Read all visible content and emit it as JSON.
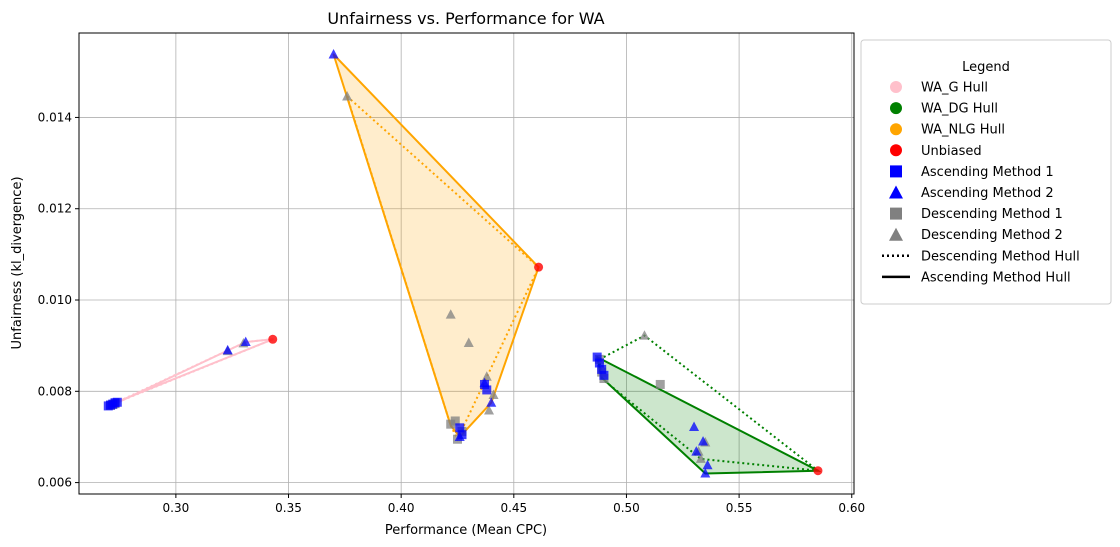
{
  "chart_data": {
    "type": "scatter",
    "title": "Unfairness vs. Performance for WA",
    "xlabel": "Performance (Mean CPC)",
    "ylabel": "Unfairness (kl_divergence)",
    "xlim": [
      0.257,
      0.601
    ],
    "ylim": [
      0.00575,
      0.01585
    ],
    "xticks": [
      "0.30",
      "0.35",
      "0.40",
      "0.45",
      "0.50",
      "0.55",
      "0.60"
    ],
    "yticks": [
      "0.006",
      "0.008",
      "0.010",
      "0.012",
      "0.014"
    ],
    "grid": true,
    "legend": {
      "title": "Legend",
      "placement": "outside-right",
      "entries": [
        {
          "label": "WA_G Hull",
          "marker": "circle",
          "color": "#ffc0cb"
        },
        {
          "label": "WA_DG Hull",
          "marker": "circle",
          "color": "#008000"
        },
        {
          "label": "WA_NLG Hull",
          "marker": "circle",
          "color": "#ffa500"
        },
        {
          "label": "Unbiased",
          "marker": "circle",
          "color": "#ff0000"
        },
        {
          "label": "Ascending Method 1",
          "marker": "square",
          "color": "#0000ff"
        },
        {
          "label": "Ascending Method 2",
          "marker": "triangle",
          "color": "#0000ff"
        },
        {
          "label": "Descending Method 1",
          "marker": "square",
          "color": "#808080"
        },
        {
          "label": "Descending Method 2",
          "marker": "triangle",
          "color": "#808080"
        },
        {
          "label": "Descending Method Hull",
          "marker": "dotted-line",
          "color": "#000000"
        },
        {
          "label": "Ascending Method Hull",
          "marker": "solid-line",
          "color": "#000000"
        }
      ]
    },
    "groups": [
      {
        "name": "WA_G",
        "color": "#ffc0cb",
        "fill": false,
        "unbiased": [
          0.343,
          0.00914
        ],
        "ascending_hull": [
          [
            0.343,
            0.00914
          ],
          [
            0.331,
            0.00908
          ],
          [
            0.271,
            0.00768
          ],
          [
            0.273,
            0.00775
          ]
        ],
        "descending_hull": [
          [
            0.343,
            0.00914
          ],
          [
            0.331,
            0.00908
          ],
          [
            0.272,
            0.00772
          ]
        ],
        "ascending_method_1": [
          [
            0.27,
            0.00768
          ],
          [
            0.271,
            0.0077
          ],
          [
            0.272,
            0.00772
          ],
          [
            0.273,
            0.00775
          ],
          [
            0.274,
            0.00776
          ]
        ],
        "ascending_method_2": [
          [
            0.323,
            0.0089
          ],
          [
            0.331,
            0.00908
          ]
        ],
        "descending_method_1": [
          [
            0.271,
            0.00769
          ],
          [
            0.272,
            0.00771
          ],
          [
            0.273,
            0.00773
          ]
        ],
        "descending_method_2": [
          [
            0.323,
            0.00888
          ],
          [
            0.33,
            0.00905
          ]
        ]
      },
      {
        "name": "WA_NLG",
        "color": "#ffa500",
        "fill": true,
        "unbiased": [
          0.461,
          0.01072
        ],
        "ascending_hull": [
          [
            0.37,
            0.01538
          ],
          [
            0.461,
            0.01072
          ],
          [
            0.44,
            0.00775
          ],
          [
            0.426,
            0.007
          ],
          [
            0.422,
            0.00725
          ]
        ],
        "descending_hull": [
          [
            0.376,
            0.01446
          ],
          [
            0.461,
            0.01072
          ],
          [
            0.425,
            0.00695
          ],
          [
            0.422,
            0.00725
          ]
        ],
        "ascending_method_1": [
          [
            0.426,
            0.0072
          ],
          [
            0.427,
            0.00705
          ],
          [
            0.437,
            0.00815
          ],
          [
            0.438,
            0.00803
          ]
        ],
        "ascending_method_2": [
          [
            0.37,
            0.01538
          ],
          [
            0.426,
            0.007
          ],
          [
            0.437,
            0.00818
          ],
          [
            0.44,
            0.00775
          ]
        ],
        "descending_method_1": [
          [
            0.422,
            0.00728
          ],
          [
            0.424,
            0.00735
          ],
          [
            0.425,
            0.00695
          ],
          [
            0.427,
            0.00712
          ]
        ],
        "descending_method_2": [
          [
            0.376,
            0.01446
          ],
          [
            0.422,
            0.00968
          ],
          [
            0.43,
            0.00906
          ],
          [
            0.438,
            0.00832
          ],
          [
            0.439,
            0.00758
          ],
          [
            0.441,
            0.00792
          ]
        ]
      },
      {
        "name": "WA_DG",
        "color": "#008000",
        "fill": true,
        "unbiased": [
          0.585,
          0.00626
        ],
        "ascending_hull": [
          [
            0.487,
            0.00875
          ],
          [
            0.585,
            0.00626
          ],
          [
            0.535,
            0.0062
          ],
          [
            0.489,
            0.0083
          ]
        ],
        "descending_hull": [
          [
            0.488,
            0.0087
          ],
          [
            0.508,
            0.00922
          ],
          [
            0.585,
            0.00626
          ],
          [
            0.533,
            0.00652
          ],
          [
            0.489,
            0.00828
          ]
        ],
        "ascending_method_1": [
          [
            0.487,
            0.00875
          ],
          [
            0.488,
            0.00862
          ],
          [
            0.489,
            0.00848
          ],
          [
            0.49,
            0.00835
          ]
        ],
        "ascending_method_2": [
          [
            0.53,
            0.00722
          ],
          [
            0.531,
            0.00668
          ],
          [
            0.535,
            0.0062
          ],
          [
            0.536,
            0.00638
          ],
          [
            0.534,
            0.0069
          ]
        ],
        "descending_method_1": [
          [
            0.488,
            0.0087
          ],
          [
            0.489,
            0.00842
          ],
          [
            0.49,
            0.00828
          ],
          [
            0.515,
            0.00815
          ]
        ],
        "descending_method_2": [
          [
            0.508,
            0.00922
          ],
          [
            0.532,
            0.00668
          ],
          [
            0.533,
            0.00652
          ],
          [
            0.535,
            0.00688
          ]
        ]
      }
    ]
  }
}
